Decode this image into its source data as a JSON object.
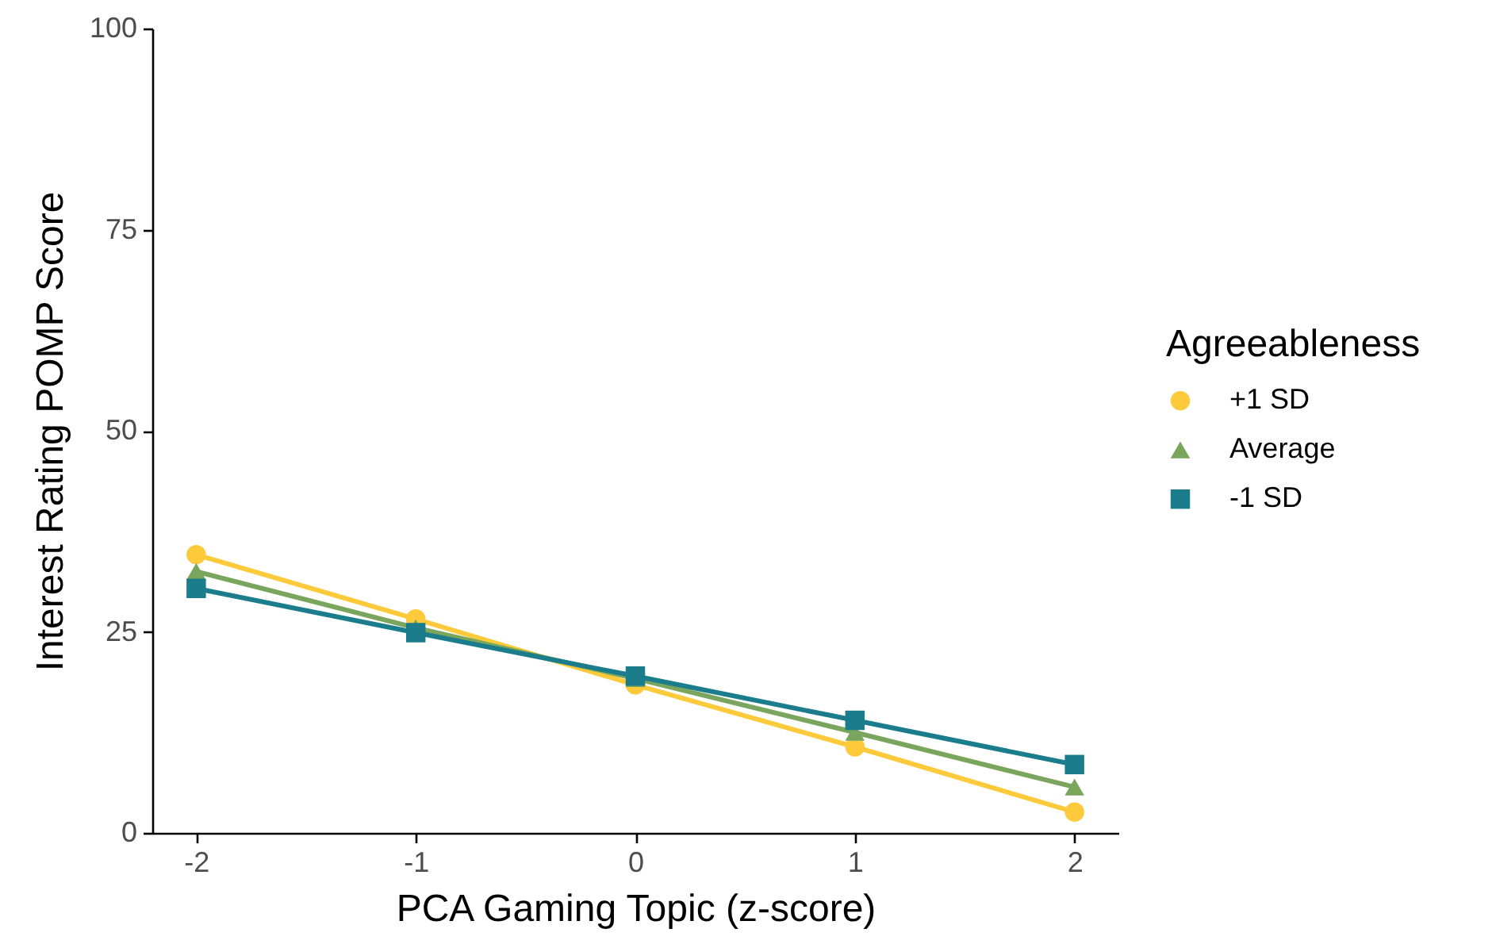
{
  "chart_data": {
    "type": "line",
    "xlabel": "PCA Gaming Topic (z-score)",
    "ylabel": "Interest Rating POMP Score",
    "legend_title": "Agreeableness",
    "x": [
      -2,
      -1,
      0,
      1,
      2
    ],
    "xlim": [
      -2.2,
      2.2
    ],
    "xticks": [
      -2,
      -1,
      0,
      1,
      2
    ],
    "ylim": [
      0,
      100
    ],
    "yticks": [
      0,
      25,
      50,
      75,
      100
    ],
    "grid": false,
    "legend": "right",
    "line_style": "solid",
    "series": [
      {
        "name": "+1 SD",
        "color": "#fdca3b",
        "marker": "circle",
        "values": [
          34.6,
          26.6,
          18.4,
          10.7,
          2.6
        ]
      },
      {
        "name": "Average",
        "color": "#7aa55c",
        "marker": "triangle",
        "values": [
          32.5,
          25.5,
          19.2,
          12.5,
          5.7
        ]
      },
      {
        "name": "-1 SD",
        "color": "#1b7d8b",
        "marker": "square",
        "values": [
          30.4,
          24.9,
          19.5,
          14.0,
          8.5
        ]
      }
    ]
  }
}
